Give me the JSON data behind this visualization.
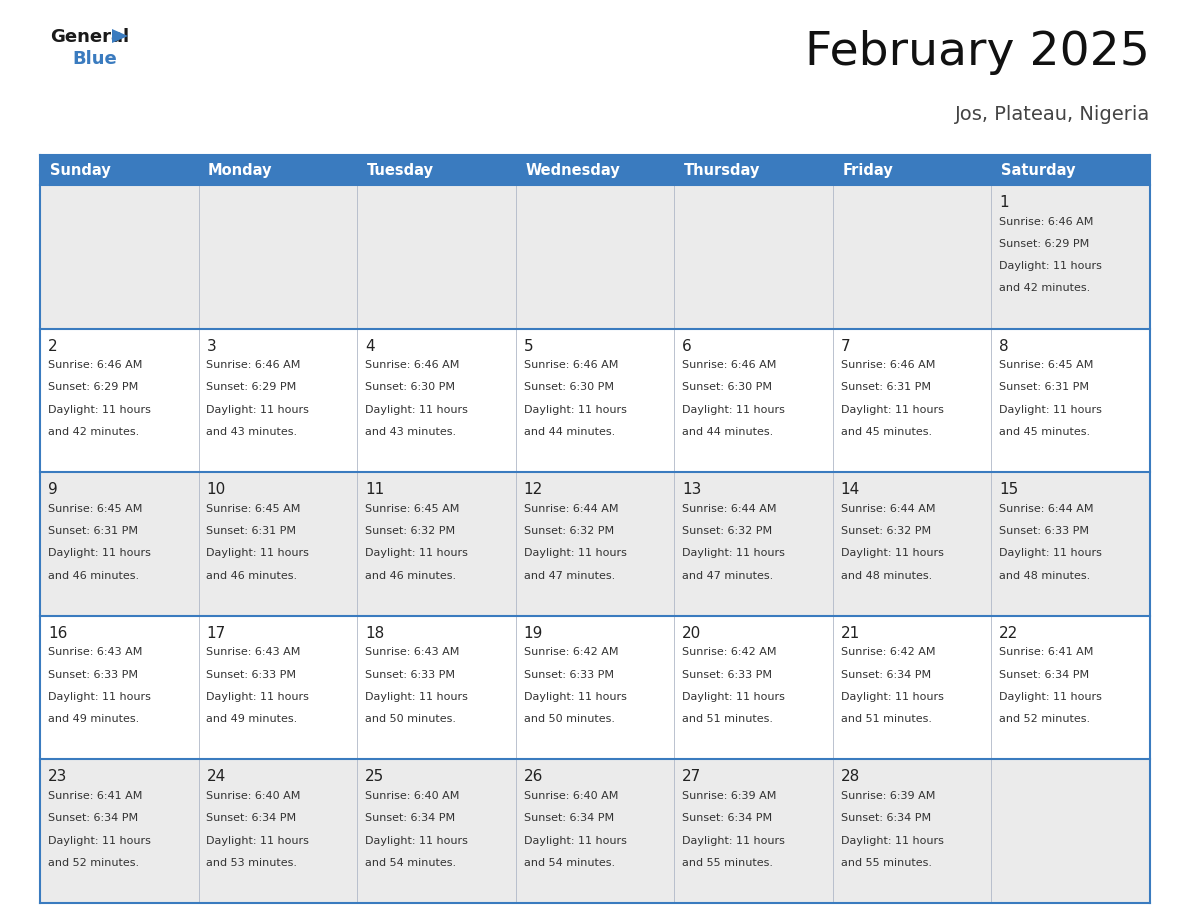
{
  "title": "February 2025",
  "subtitle": "Jos, Plateau, Nigeria",
  "days_of_week": [
    "Sunday",
    "Monday",
    "Tuesday",
    "Wednesday",
    "Thursday",
    "Friday",
    "Saturday"
  ],
  "header_bg": "#3a7bbf",
  "header_text": "#ffffff",
  "cell_bg_light": "#ebebeb",
  "cell_bg_white": "#ffffff",
  "border_color": "#3a7bbf",
  "day_num_color": "#222222",
  "info_color": "#333333",
  "title_color": "#111111",
  "subtitle_color": "#444444",
  "weeks": [
    [
      {
        "day": null,
        "info": ""
      },
      {
        "day": null,
        "info": ""
      },
      {
        "day": null,
        "info": ""
      },
      {
        "day": null,
        "info": ""
      },
      {
        "day": null,
        "info": ""
      },
      {
        "day": null,
        "info": ""
      },
      {
        "day": 1,
        "info": "Sunrise: 6:46 AM\nSunset: 6:29 PM\nDaylight: 11 hours\nand 42 minutes."
      }
    ],
    [
      {
        "day": 2,
        "info": "Sunrise: 6:46 AM\nSunset: 6:29 PM\nDaylight: 11 hours\nand 42 minutes."
      },
      {
        "day": 3,
        "info": "Sunrise: 6:46 AM\nSunset: 6:29 PM\nDaylight: 11 hours\nand 43 minutes."
      },
      {
        "day": 4,
        "info": "Sunrise: 6:46 AM\nSunset: 6:30 PM\nDaylight: 11 hours\nand 43 minutes."
      },
      {
        "day": 5,
        "info": "Sunrise: 6:46 AM\nSunset: 6:30 PM\nDaylight: 11 hours\nand 44 minutes."
      },
      {
        "day": 6,
        "info": "Sunrise: 6:46 AM\nSunset: 6:30 PM\nDaylight: 11 hours\nand 44 minutes."
      },
      {
        "day": 7,
        "info": "Sunrise: 6:46 AM\nSunset: 6:31 PM\nDaylight: 11 hours\nand 45 minutes."
      },
      {
        "day": 8,
        "info": "Sunrise: 6:45 AM\nSunset: 6:31 PM\nDaylight: 11 hours\nand 45 minutes."
      }
    ],
    [
      {
        "day": 9,
        "info": "Sunrise: 6:45 AM\nSunset: 6:31 PM\nDaylight: 11 hours\nand 46 minutes."
      },
      {
        "day": 10,
        "info": "Sunrise: 6:45 AM\nSunset: 6:31 PM\nDaylight: 11 hours\nand 46 minutes."
      },
      {
        "day": 11,
        "info": "Sunrise: 6:45 AM\nSunset: 6:32 PM\nDaylight: 11 hours\nand 46 minutes."
      },
      {
        "day": 12,
        "info": "Sunrise: 6:44 AM\nSunset: 6:32 PM\nDaylight: 11 hours\nand 47 minutes."
      },
      {
        "day": 13,
        "info": "Sunrise: 6:44 AM\nSunset: 6:32 PM\nDaylight: 11 hours\nand 47 minutes."
      },
      {
        "day": 14,
        "info": "Sunrise: 6:44 AM\nSunset: 6:32 PM\nDaylight: 11 hours\nand 48 minutes."
      },
      {
        "day": 15,
        "info": "Sunrise: 6:44 AM\nSunset: 6:33 PM\nDaylight: 11 hours\nand 48 minutes."
      }
    ],
    [
      {
        "day": 16,
        "info": "Sunrise: 6:43 AM\nSunset: 6:33 PM\nDaylight: 11 hours\nand 49 minutes."
      },
      {
        "day": 17,
        "info": "Sunrise: 6:43 AM\nSunset: 6:33 PM\nDaylight: 11 hours\nand 49 minutes."
      },
      {
        "day": 18,
        "info": "Sunrise: 6:43 AM\nSunset: 6:33 PM\nDaylight: 11 hours\nand 50 minutes."
      },
      {
        "day": 19,
        "info": "Sunrise: 6:42 AM\nSunset: 6:33 PM\nDaylight: 11 hours\nand 50 minutes."
      },
      {
        "day": 20,
        "info": "Sunrise: 6:42 AM\nSunset: 6:33 PM\nDaylight: 11 hours\nand 51 minutes."
      },
      {
        "day": 21,
        "info": "Sunrise: 6:42 AM\nSunset: 6:34 PM\nDaylight: 11 hours\nand 51 minutes."
      },
      {
        "day": 22,
        "info": "Sunrise: 6:41 AM\nSunset: 6:34 PM\nDaylight: 11 hours\nand 52 minutes."
      }
    ],
    [
      {
        "day": 23,
        "info": "Sunrise: 6:41 AM\nSunset: 6:34 PM\nDaylight: 11 hours\nand 52 minutes."
      },
      {
        "day": 24,
        "info": "Sunrise: 6:40 AM\nSunset: 6:34 PM\nDaylight: 11 hours\nand 53 minutes."
      },
      {
        "day": 25,
        "info": "Sunrise: 6:40 AM\nSunset: 6:34 PM\nDaylight: 11 hours\nand 54 minutes."
      },
      {
        "day": 26,
        "info": "Sunrise: 6:40 AM\nSunset: 6:34 PM\nDaylight: 11 hours\nand 54 minutes."
      },
      {
        "day": 27,
        "info": "Sunrise: 6:39 AM\nSunset: 6:34 PM\nDaylight: 11 hours\nand 55 minutes."
      },
      {
        "day": 28,
        "info": "Sunrise: 6:39 AM\nSunset: 6:34 PM\nDaylight: 11 hours\nand 55 minutes."
      },
      {
        "day": null,
        "info": ""
      }
    ]
  ]
}
